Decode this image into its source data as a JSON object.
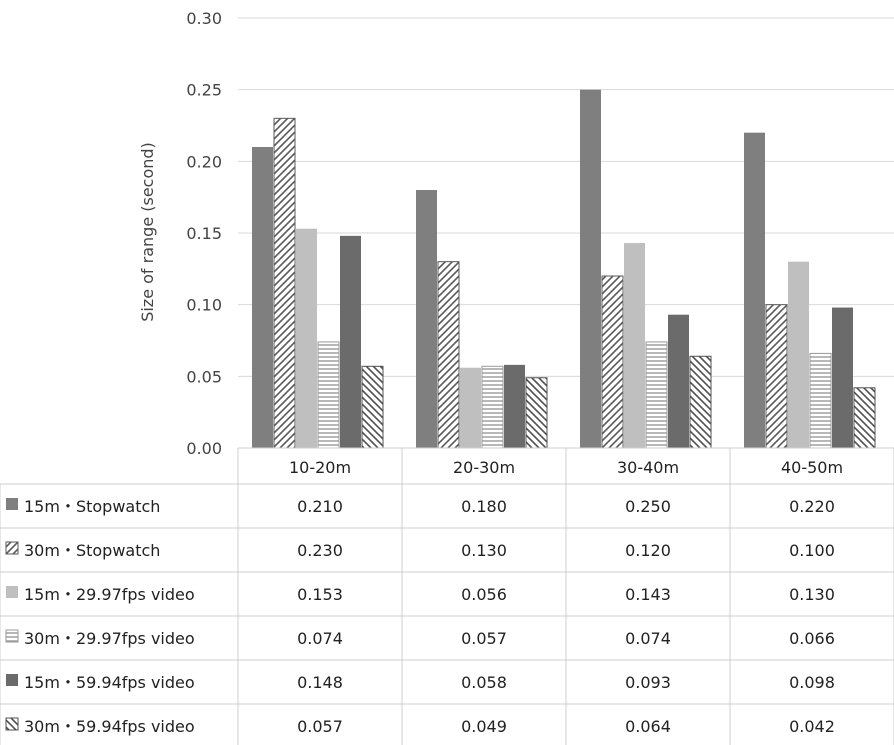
{
  "chart_data": {
    "type": "bar",
    "ylabel": "Size of range (second)",
    "ylim": [
      0,
      0.3
    ],
    "yticks": [
      "0.00",
      "0.05",
      "0.10",
      "0.15",
      "0.20",
      "0.25",
      "0.30"
    ],
    "grid": true,
    "legend": "data-table-below",
    "categories": [
      "10-20m",
      "20-30m",
      "30-40m",
      "40-50m"
    ],
    "series": [
      {
        "name": "15m・Stopwatch",
        "values": [
          0.21,
          0.18,
          0.25,
          0.22
        ],
        "labels": [
          "0.210",
          "0.180",
          "0.250",
          "0.220"
        ],
        "color": "#7f7f7f",
        "pattern": "solid"
      },
      {
        "name": "30m・Stopwatch",
        "values": [
          0.23,
          0.13,
          0.12,
          0.1
        ],
        "labels": [
          "0.230",
          "0.130",
          "0.120",
          "0.100"
        ],
        "color": "#5a5a5a",
        "pattern": "diag-up"
      },
      {
        "name": "15m・29.97fps video",
        "values": [
          0.153,
          0.056,
          0.143,
          0.13
        ],
        "labels": [
          "0.153",
          "0.056",
          "0.143",
          "0.130"
        ],
        "color": "#bfbfbf",
        "pattern": "solid"
      },
      {
        "name": "30m・29.97fps video",
        "values": [
          0.074,
          0.057,
          0.074,
          0.066
        ],
        "labels": [
          "0.074",
          "0.057",
          "0.074",
          "0.066"
        ],
        "color": "#9a9a9a",
        "pattern": "horizontal"
      },
      {
        "name": "15m・59.94fps video",
        "values": [
          0.148,
          0.058,
          0.093,
          0.098
        ],
        "labels": [
          "0.148",
          "0.058",
          "0.093",
          "0.098"
        ],
        "color": "#6b6b6b",
        "pattern": "solid"
      },
      {
        "name": "30m・59.94fps video",
        "values": [
          0.057,
          0.049,
          0.064,
          0.042
        ],
        "labels": [
          "0.057",
          "0.049",
          "0.064",
          "0.042"
        ],
        "color": "#505050",
        "pattern": "diag-down"
      }
    ]
  }
}
